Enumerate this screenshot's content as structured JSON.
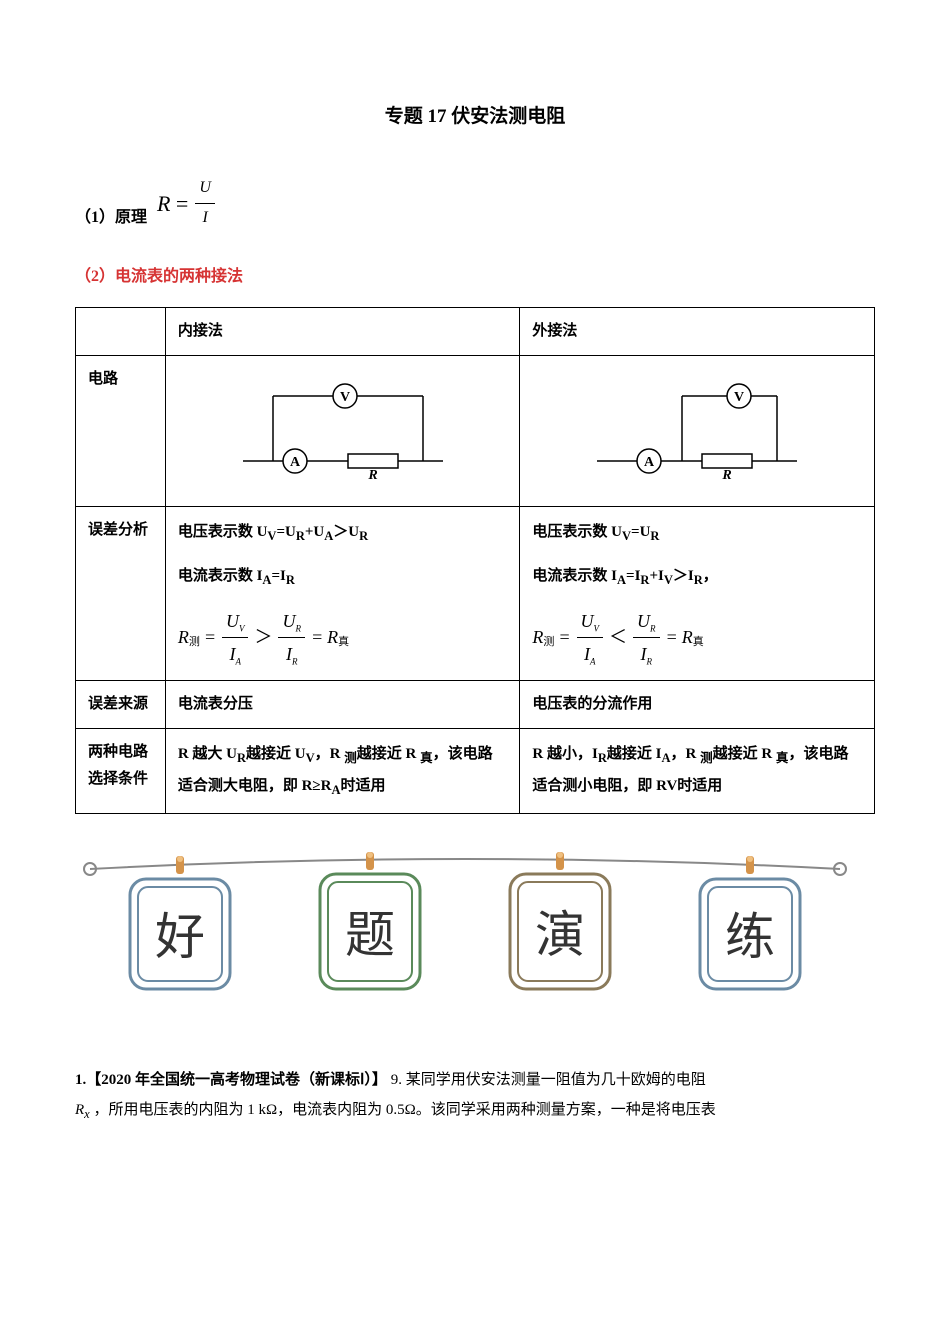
{
  "title": "专题 17 伏安法测电阻",
  "principle": {
    "prefix": "（1）原理",
    "formula_var": "R",
    "formula_num": "U",
    "formula_den": "I"
  },
  "section2_label": "（2）电流表的两种接法",
  "table": {
    "col1_header": "内接法",
    "col2_header": "外接法",
    "row_circuit": "电路",
    "row_error_analysis": "误差分析",
    "row_error_source": "误差来源",
    "row_condition": "两种电路选择条件",
    "inner": {
      "voltage": "电压表示数 U<sub>V</sub>=U<sub>R</sub>+U<sub>A</sub>＞U<sub>R</sub>",
      "current": "电流表示数 I<sub>A</sub>=I<sub>R</sub>",
      "error_source": "电流表分压",
      "condition": "R 越大 U<sub>R</sub>越接近 U<sub>V</sub>，R <sub>测</sub>越接近 R <sub>真</sub>，该电路适合测大电阻，即 R≥R<sub>A</sub>时适用"
    },
    "outer": {
      "voltage": "电压表示数 U<sub>V</sub>=U<sub>R</sub>",
      "current": "电流表示数 I<sub>A</sub>=I<sub>R</sub>+I<sub>V</sub>＞I<sub>R</sub>，",
      "error_source": "电压表的分流作用",
      "condition": "R 越小，I<sub>R</sub>越接近 I<sub>A</sub>，R <sub>测</sub>越接近 R <sub>真</sub>，该电路适合测小电阻，即 R<R<sub>V</sub>时适用"
    }
  },
  "banner": {
    "c1": "好",
    "c2": "题",
    "c3": "演",
    "c4": "练"
  },
  "question": {
    "prefix": "1.【2020 年全国统一高考物理试卷（新课标Ⅰ）】",
    "q_num": "9.",
    "body_line1": "某同学用伏安法测量一阻值为几十欧姆的电阻",
    "body_line2a": "R",
    "body_line2a_sub": "x",
    "body_line2b": "，所用电压表的内阻为 1 kΩ，电流表内阻为 0.5Ω。该同学采用两种测量方案，一种是将电压表"
  },
  "colors": {
    "accent_red": "#d63333",
    "banner_steel": "#6b8ba4",
    "banner_green": "#5a8a5a",
    "banner_brown": "#8a7a5a",
    "banner_orange": "#d4934a"
  }
}
